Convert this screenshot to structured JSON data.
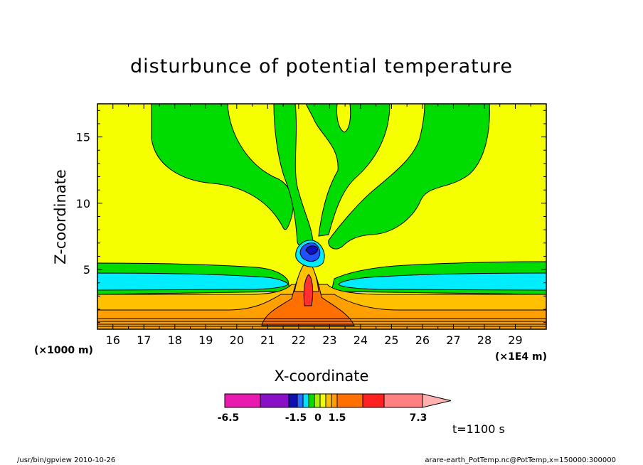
{
  "chart_data": {
    "type": "heatmap",
    "title": "disturbunce of potential temperature",
    "xlabel": "X-coordinate",
    "ylabel": "Z-coordinate",
    "x_unit_left": "(×1000 m)",
    "x_unit_right": "(×1E4 m)",
    "xlim": [
      15.5,
      30
    ],
    "ylim": [
      0.5,
      17.5
    ],
    "x_ticks": [
      "16",
      "17",
      "18",
      "19",
      "20",
      "21",
      "22",
      "23",
      "24",
      "25",
      "26",
      "27",
      "28",
      "29"
    ],
    "y_ticks": [
      "5",
      "10",
      "15"
    ],
    "time_label": "t=1100 s",
    "colorbar": {
      "labels": [
        "-6.5",
        "-1.5",
        "0",
        "1.5",
        "7.3"
      ],
      "colors": [
        "#e81ab0",
        "#8a10c8",
        "#1010b0",
        "#2a6cff",
        "#00e0ff",
        "#00e000",
        "#a8f000",
        "#f0ff00",
        "#ffc000",
        "#ffa000",
        "#ff7000",
        "#ff2020",
        "#ff8080",
        "#ffb0b0"
      ]
    },
    "colors": {
      "yellow": "#f5ff00",
      "green": "#00dc00",
      "cyan": "#00ecff",
      "gold": "#ffc000",
      "amber": "#ffa000",
      "orange": "#ff7000",
      "red": "#ff3030",
      "blue": "#2050ff",
      "navy": "#1010c0"
    }
  },
  "footer": {
    "left": "/usr/bin/gpview   2010-10-26",
    "right": "arare-earth_PotTemp.nc@PotTemp,x=150000:300000"
  }
}
